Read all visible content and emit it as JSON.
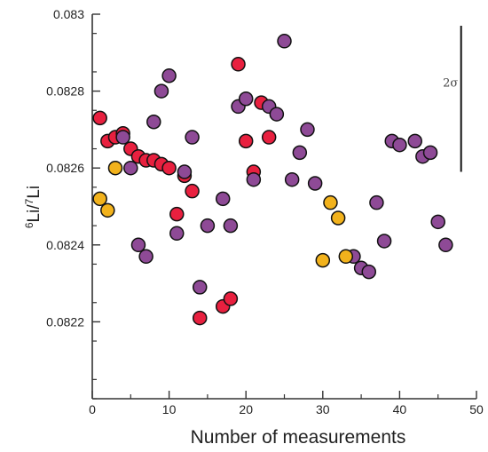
{
  "chart_data": {
    "type": "scatter",
    "xlabel": "Number of measurements",
    "ylabel": {
      "sup": "6",
      "main": "Li/",
      "mid_sup": "7",
      "end": "Li"
    },
    "xlim": [
      0,
      50
    ],
    "ylim": [
      0.082,
      0.083
    ],
    "x_ticks": [
      "0",
      "10",
      "20",
      "30",
      "40",
      "50"
    ],
    "y_ticks": [
      "0.0822",
      "0.0824",
      "0.0826",
      "0.0828",
      "0.083"
    ],
    "grid": false,
    "legend": "none",
    "error_bar": {
      "label": "2σ",
      "x": 48,
      "y_from": 0.08259,
      "y_to": 0.08297
    },
    "series": [
      {
        "color": "#e8203f",
        "points": [
          [
            1,
            0.08273
          ],
          [
            2,
            0.08267
          ],
          [
            3,
            0.08268
          ],
          [
            4,
            0.08269
          ],
          [
            5,
            0.08265
          ],
          [
            6,
            0.08263
          ],
          [
            7,
            0.08262
          ],
          [
            8,
            0.08262
          ],
          [
            9,
            0.08261
          ],
          [
            10,
            0.0826
          ],
          [
            11,
            0.08248
          ],
          [
            12,
            0.08258
          ],
          [
            13,
            0.08254
          ],
          [
            14,
            0.08221
          ],
          [
            17,
            0.08224
          ],
          [
            18,
            0.08226
          ],
          [
            19,
            0.08287
          ],
          [
            20,
            0.08267
          ],
          [
            21,
            0.08259
          ],
          [
            22,
            0.08277
          ],
          [
            23,
            0.08268
          ]
        ]
      },
      {
        "color": "#8e4a96",
        "points": [
          [
            4,
            0.08268
          ],
          [
            5,
            0.0826
          ],
          [
            6,
            0.0824
          ],
          [
            7,
            0.08237
          ],
          [
            8,
            0.08272
          ],
          [
            9,
            0.0828
          ],
          [
            10,
            0.08284
          ],
          [
            11,
            0.08243
          ],
          [
            12,
            0.08259
          ],
          [
            13,
            0.08268
          ],
          [
            14,
            0.08229
          ],
          [
            15,
            0.08245
          ],
          [
            17,
            0.08252
          ],
          [
            18,
            0.08245
          ],
          [
            19,
            0.08276
          ],
          [
            20,
            0.08278
          ],
          [
            21,
            0.08257
          ],
          [
            23,
            0.08276
          ],
          [
            24,
            0.08274
          ],
          [
            25,
            0.08293
          ],
          [
            26,
            0.08257
          ],
          [
            27,
            0.08264
          ],
          [
            28,
            0.0827
          ],
          [
            29,
            0.08256
          ],
          [
            34,
            0.08237
          ],
          [
            35,
            0.08234
          ],
          [
            36,
            0.08233
          ],
          [
            37,
            0.08251
          ],
          [
            38,
            0.08241
          ],
          [
            39,
            0.08267
          ],
          [
            40,
            0.08266
          ],
          [
            42,
            0.08267
          ],
          [
            43,
            0.08263
          ],
          [
            44,
            0.08264
          ],
          [
            45,
            0.08246
          ],
          [
            46,
            0.0824
          ]
        ]
      },
      {
        "color": "#f2b21c",
        "points": [
          [
            1,
            0.08252
          ],
          [
            2,
            0.08249
          ],
          [
            3,
            0.0826
          ],
          [
            30,
            0.08236
          ],
          [
            31,
            0.08251
          ],
          [
            32,
            0.08247
          ],
          [
            33,
            0.08237
          ]
        ]
      }
    ]
  }
}
